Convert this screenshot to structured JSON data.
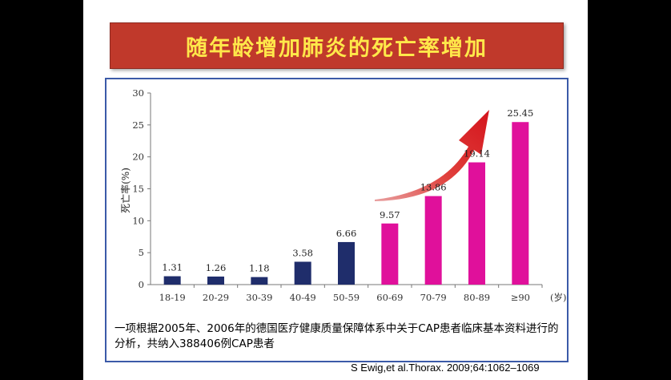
{
  "slide": {
    "title": "随年龄增加肺炎的死亡率增加",
    "caption": "一项根据2005年、2006年的德国医疗健康质量保障体系中关于CAP患者临床基本资料进行的分析，共纳入388406例CAP患者",
    "citation": "S Ewig,et al.Thorax. 2009;64:1062–1069"
  },
  "colors": {
    "background": "#000000",
    "title_bg": "#c0392b",
    "title_text": "#ffe84a",
    "frame_border": "#3b5aa8",
    "bar_navy": "#1f2d6b",
    "bar_magenta": "#e0109b",
    "arrow": "#d4141c"
  },
  "chart_data": {
    "type": "bar",
    "categories": [
      "18-19",
      "20-29",
      "30-39",
      "40-49",
      "50-59",
      "60-69",
      "70-79",
      "80-89",
      "≥90"
    ],
    "values": [
      1.31,
      1.26,
      1.18,
      3.58,
      6.66,
      9.57,
      13.86,
      19.14,
      25.45
    ],
    "data_labels": [
      "1.31",
      "1.26",
      "1.18",
      "3.58",
      "6.66",
      "9.57",
      "13.86",
      "19.14",
      "25.45"
    ],
    "bar_colors": [
      "#1f2d6b",
      "#1f2d6b",
      "#1f2d6b",
      "#1f2d6b",
      "#1f2d6b",
      "#e0109b",
      "#e0109b",
      "#e0109b",
      "#e0109b"
    ],
    "ylabel": "死亡率(%)",
    "xunit": "(岁)",
    "ylim": [
      0,
      30
    ],
    "yticks": [
      0,
      5,
      10,
      15,
      20,
      25,
      30
    ],
    "grid": false,
    "legend": "none",
    "annotation": "red upward trend arrow"
  }
}
